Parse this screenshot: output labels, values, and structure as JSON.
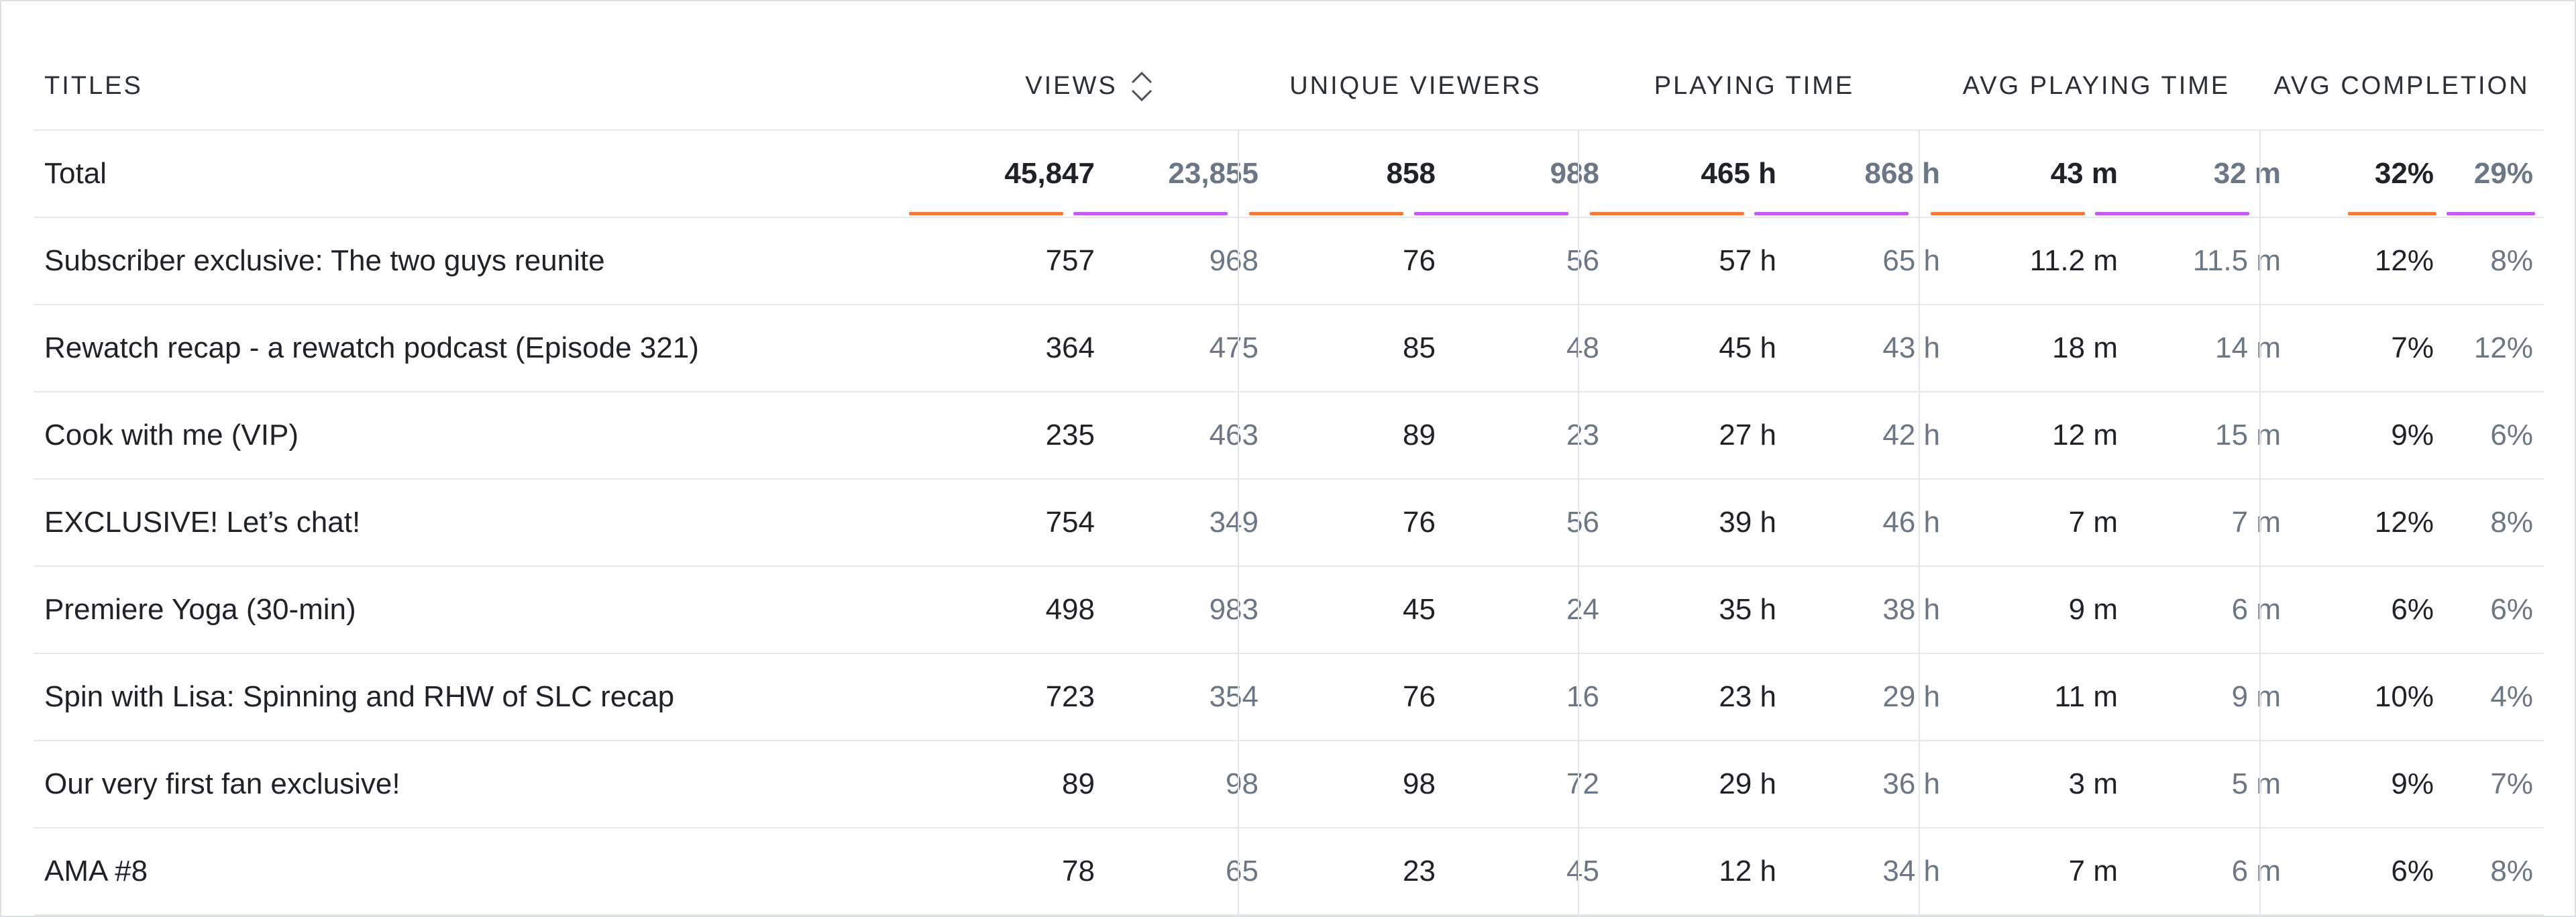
{
  "headers": {
    "titles": "TITLES",
    "views": "VIEWS",
    "unique_viewers": "UNIQUE VIEWERS",
    "playing_time": "PLAYING TIME",
    "avg_playing_time": "AVG PLAYING TIME",
    "avg_completion": "AVG COMPLETION"
  },
  "icons": {
    "sort": "sort-updown-icon"
  },
  "colors": {
    "current_period_bar": "#f47a3c",
    "previous_period_bar": "#c25df0",
    "previous_text": "#6b7785"
  },
  "total": {
    "title": "Total",
    "views": "45,847",
    "views_prev": "23,855",
    "unique": "858",
    "unique_prev": "988",
    "playing": "465 h",
    "playing_prev": "868 h",
    "avg_playing": "43 m",
    "avg_playing_prev": "32 m",
    "completion": "32%",
    "completion_prev": "29%"
  },
  "rows": [
    {
      "title": "Subscriber exclusive: The two guys reunite",
      "views": "757",
      "views_prev": "968",
      "unique": "76",
      "unique_prev": "56",
      "playing": "57 h",
      "playing_prev": "65 h",
      "avg_playing": "11.2 m",
      "avg_playing_prev": "11.5 m",
      "completion": "12%",
      "completion_prev": "8%"
    },
    {
      "title": "Rewatch recap - a rewatch podcast (Episode 321)",
      "views": "364",
      "views_prev": "475",
      "unique": "85",
      "unique_prev": "48",
      "playing": "45 h",
      "playing_prev": "43 h",
      "avg_playing": "18 m",
      "avg_playing_prev": "14 m",
      "completion": "7%",
      "completion_prev": "12%"
    },
    {
      "title": "Cook with me (VIP)",
      "views": "235",
      "views_prev": "463",
      "unique": "89",
      "unique_prev": "23",
      "playing": "27 h",
      "playing_prev": "42 h",
      "avg_playing": "12 m",
      "avg_playing_prev": "15 m",
      "completion": "9%",
      "completion_prev": "6%"
    },
    {
      "title": "EXCLUSIVE! Let’s chat!",
      "views": "754",
      "views_prev": "349",
      "unique": "76",
      "unique_prev": "56",
      "playing": "39 h",
      "playing_prev": "46 h",
      "avg_playing": "7 m",
      "avg_playing_prev": "7 m",
      "completion": "12%",
      "completion_prev": "8%"
    },
    {
      "title": "Premiere Yoga (30-min)",
      "views": "498",
      "views_prev": "983",
      "unique": "45",
      "unique_prev": "24",
      "playing": "35 h",
      "playing_prev": "38 h",
      "avg_playing": "9 m",
      "avg_playing_prev": "6 m",
      "completion": "6%",
      "completion_prev": "6%"
    },
    {
      "title": "Spin with Lisa: Spinning and RHW of SLC recap",
      "views": "723",
      "views_prev": "354",
      "unique": "76",
      "unique_prev": "16",
      "playing": "23 h",
      "playing_prev": "29 h",
      "avg_playing": "11 m",
      "avg_playing_prev": "9 m",
      "completion": "10%",
      "completion_prev": "4%"
    },
    {
      "title": "Our very first fan exclusive!",
      "views": "89",
      "views_prev": "98",
      "unique": "98",
      "unique_prev": "72",
      "playing": "29 h",
      "playing_prev": "36 h",
      "avg_playing": "3 m",
      "avg_playing_prev": "5 m",
      "completion": "9%",
      "completion_prev": "7%"
    },
    {
      "title": "AMA #8",
      "views": "78",
      "views_prev": "65",
      "unique": "23",
      "unique_prev": "45",
      "playing": "12 h",
      "playing_prev": "34 h",
      "avg_playing": "7 m",
      "avg_playing_prev": "6 m",
      "completion": "6%",
      "completion_prev": "8%"
    }
  ]
}
